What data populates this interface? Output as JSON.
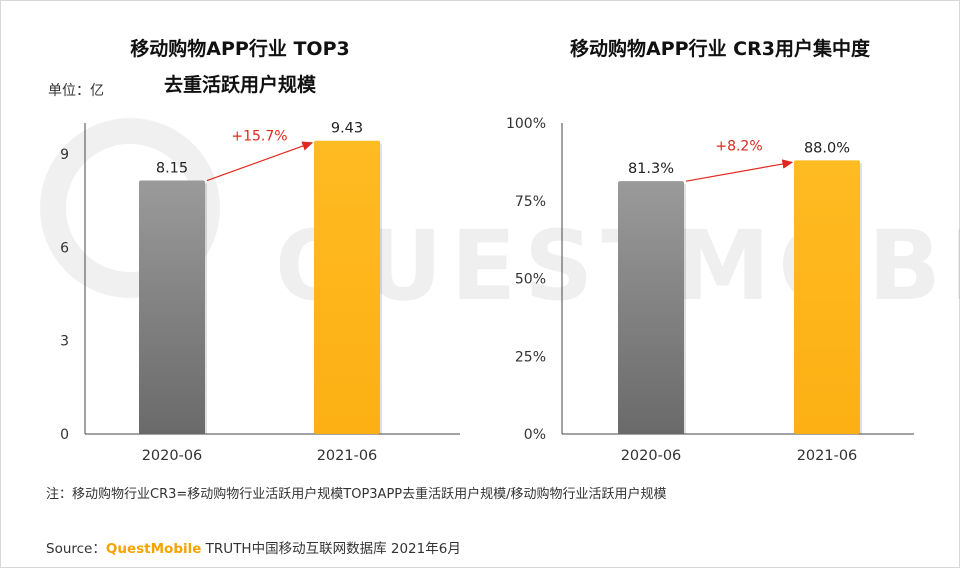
{
  "unit_label": "单位：亿",
  "note": "注：移动购物行业CR3=移动购物行业活跃用户规模TOP3APP去重活跃用户规模/移动购物行业活跃用户规模",
  "source": {
    "prefix": "Source：",
    "brand": "QuestMobile",
    "rest": " TRUTH中国移动互联网数据库 2021年6月"
  },
  "watermark": "QUESTMOBILE",
  "colors": {
    "bar_2020": "#808080",
    "bar_2021": "#ffb51a",
    "growth_arrow": "#e0281e"
  },
  "chart_data": [
    {
      "type": "bar",
      "title_lines": [
        "移动购物APP行业 TOP3",
        "去重活跃用户规模"
      ],
      "categories": [
        "2020-06",
        "2021-06"
      ],
      "values": [
        8.15,
        9.43
      ],
      "value_labels": [
        "8.15",
        "9.43"
      ],
      "yticks": [
        "0",
        "3",
        "6",
        "9"
      ],
      "ylim": [
        0,
        10
      ],
      "growth_label": "+15.7%",
      "grid": false
    },
    {
      "type": "bar",
      "title_lines": [
        "移动购物APP行业 CR3用户集中度"
      ],
      "categories": [
        "2020-06",
        "2021-06"
      ],
      "values": [
        81.3,
        88.0
      ],
      "value_labels": [
        "81.3%",
        "88.0%"
      ],
      "yticks": [
        "0%",
        "25%",
        "50%",
        "75%",
        "100%"
      ],
      "ylim": [
        0,
        100
      ],
      "growth_label": "+8.2%",
      "grid": false
    }
  ]
}
